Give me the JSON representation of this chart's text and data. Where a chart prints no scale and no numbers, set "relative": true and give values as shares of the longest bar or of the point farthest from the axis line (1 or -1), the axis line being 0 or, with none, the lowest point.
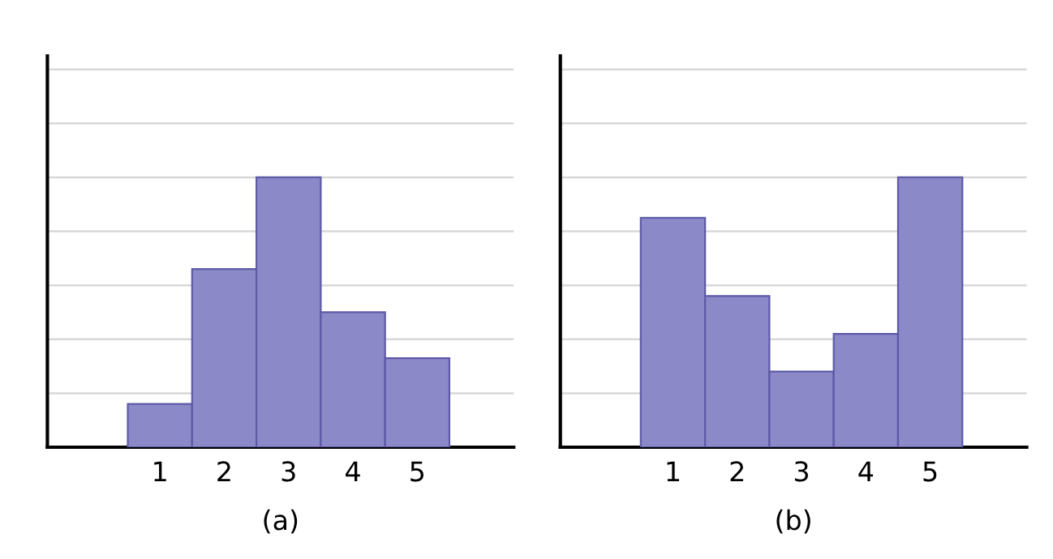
{
  "chart_data": [
    {
      "type": "bar",
      "xlabel": "(a)",
      "categories": [
        "1",
        "2",
        "3",
        "4",
        "5"
      ],
      "values": [
        0.16,
        0.66,
        1,
        0.5,
        0.33
      ],
      "relative": true,
      "color": "#8c89c9",
      "grid": "y"
    },
    {
      "type": "bar",
      "xlabel": "(b)",
      "categories": [
        "1",
        "2",
        "3",
        "4",
        "5"
      ],
      "values": [
        0.85,
        0.56,
        0.28,
        0.42,
        1
      ],
      "relative": true,
      "color": "#8c89c9",
      "grid": "y"
    }
  ]
}
